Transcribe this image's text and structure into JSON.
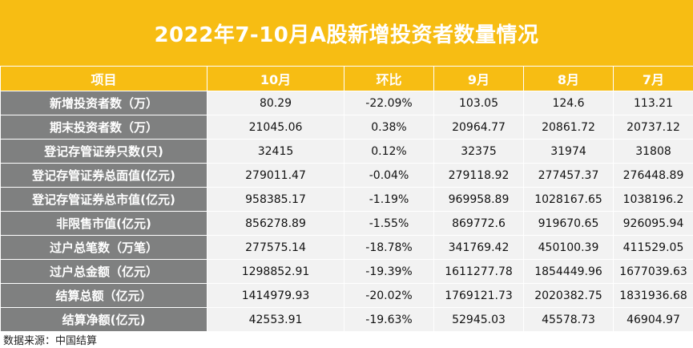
{
  "title": "2022年7-10月A股新增投资者数量情况",
  "columns": [
    "项目",
    "10月",
    "环比",
    "9月",
    "8月",
    "7月"
  ],
  "rows": [
    {
      "label": "新增投资者数（万）",
      "oct": "80.29",
      "mom": "-22.09%",
      "sep": "103.05",
      "aug": "124.6",
      "jul": "113.21"
    },
    {
      "label": "期末投资者数（万）",
      "oct": "21045.06",
      "mom": "0.38%",
      "sep": "20964.77",
      "aug": "20861.72",
      "jul": "20737.12"
    },
    {
      "label": "登记存管证券只数(只)",
      "oct": "32415",
      "mom": "0.12%",
      "sep": "32375",
      "aug": "31974",
      "jul": "31808"
    },
    {
      "label": "登记存管证券总面值(亿元)",
      "oct": "279011.47",
      "mom": "-0.04%",
      "sep": "279118.92",
      "aug": "277457.37",
      "jul": "276448.89"
    },
    {
      "label": "登记存管证券总市值(亿元)",
      "oct": "958385.17",
      "mom": "-1.19%",
      "sep": "969958.89",
      "aug": "1028167.65",
      "jul": "1038196.2"
    },
    {
      "label": "非限售市值(亿元)",
      "oct": "856278.89",
      "mom": "-1.55%",
      "sep": "869772.6",
      "aug": "919670.65",
      "jul": "926095.94"
    },
    {
      "label": "过户总笔数（万笔）",
      "oct": "277575.14",
      "mom": "-18.78%",
      "sep": "341769.42",
      "aug": "450100.39",
      "jul": "411529.05"
    },
    {
      "label": "过户总金额（亿元）",
      "oct": "1298852.91",
      "mom": "-19.39%",
      "sep": "1611277.78",
      "aug": "1854449.96",
      "jul": "1677039.63"
    },
    {
      "label": "结算总额（亿元）",
      "oct": "1414979.93",
      "mom": "-20.02%",
      "sep": "1769121.73",
      "aug": "2020382.75",
      "jul": "1831936.68"
    },
    {
      "label": "结算净额(亿元)",
      "oct": "42553.91",
      "mom": "-19.63%",
      "sep": "52945.03",
      "aug": "45578.73",
      "jul": "46904.97"
    }
  ],
  "source": "数据来源：中国结算",
  "colors": {
    "header": "#f7bd13",
    "label_bg": "#7f8080",
    "cell_bg": "#f2f2f2"
  }
}
